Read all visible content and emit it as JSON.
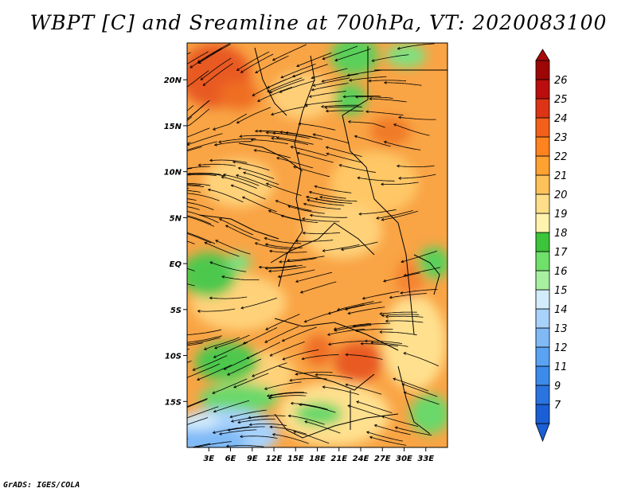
{
  "title": "WBPT [C] and Sreamline at 700hPa, VT: 2020083100",
  "footer": "GrADS: IGES/COLA",
  "map": {
    "lon_range": [
      0,
      36
    ],
    "lat_range": [
      -20,
      24
    ],
    "lon_ticks": [
      "3E",
      "6E",
      "9E",
      "12E",
      "15E",
      "18E",
      "21E",
      "24E",
      "27E",
      "30E",
      "33E"
    ],
    "lat_ticks": [
      "20N",
      "15N",
      "10N",
      "5N",
      "EQ",
      "5S",
      "10S",
      "15S"
    ],
    "field": "wet-bulb potential temperature",
    "overlay": "streamlines"
  },
  "colorbar": {
    "labels": [
      "7",
      "9",
      "11",
      "12",
      "13",
      "14",
      "15",
      "16",
      "17",
      "18",
      "19",
      "20",
      "21",
      "22",
      "23",
      "24",
      "25",
      "26"
    ],
    "colors": [
      "#1a5fd6",
      "#2a74e0",
      "#3c8bea",
      "#5aa3f2",
      "#7fbaf7",
      "#a8d2fa",
      "#d3ecfb",
      "#a7f0a0",
      "#6fe06a",
      "#3cc43a",
      "#fff3ae",
      "#ffde8a",
      "#ffc25a",
      "#ffa232",
      "#ff8420",
      "#f2601a",
      "#dc3414",
      "#bb0d0d",
      "#9c0606"
    ],
    "low_arrow_color": "#1a5fd6",
    "high_arrow_color": "#a80a0a"
  },
  "colors": {
    "background": "#f9a445",
    "cool_region": "#5ad05a",
    "hot_region": "#e85a22"
  }
}
